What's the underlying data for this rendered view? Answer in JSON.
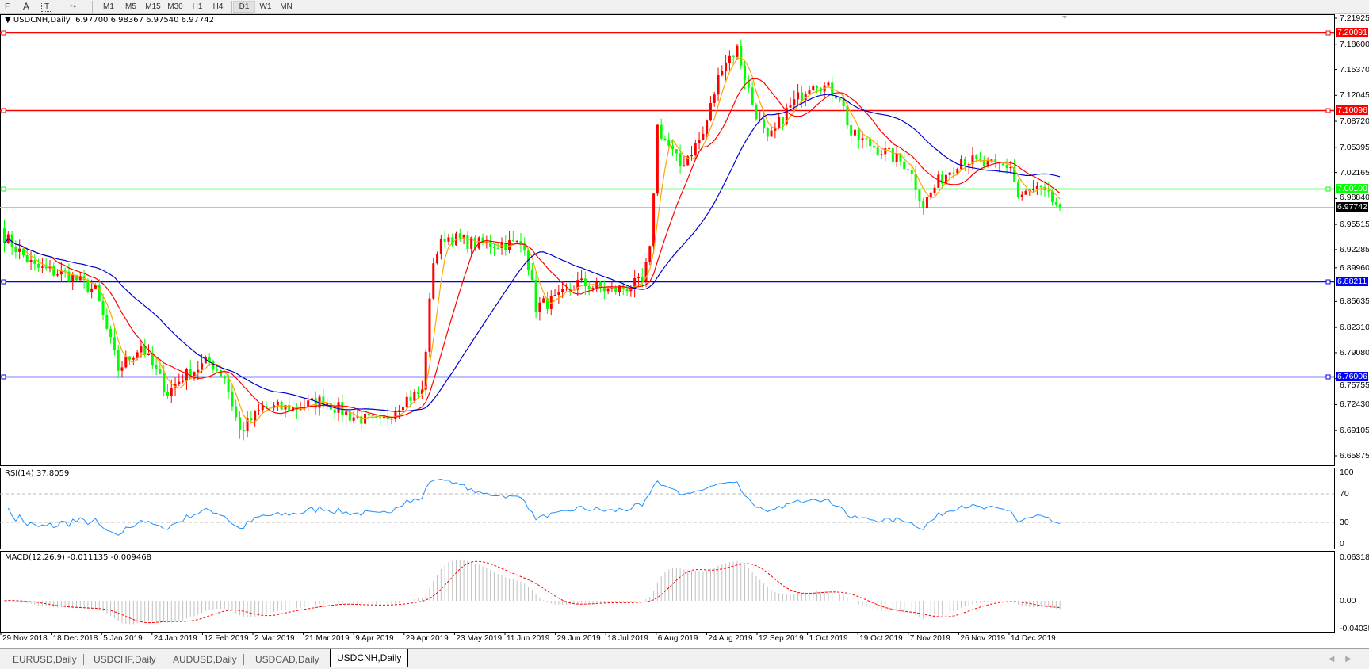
{
  "toolbar": {
    "tools": [
      "F",
      "A",
      "T",
      "⤳"
    ],
    "timeframes": [
      "M1",
      "M5",
      "M15",
      "M30",
      "H1",
      "H4",
      "D1",
      "W1",
      "MN"
    ],
    "active_timeframe": "D1"
  },
  "chart": {
    "symbol_line": "USDCNH,Daily  6.97700 6.98367 6.97540 6.97742",
    "current_price": "6.97742",
    "price_ticks": [
      "7.21925",
      "7.18600",
      "7.15370",
      "7.12045",
      "7.08720",
      "7.05395",
      "7.02165",
      "6.98840",
      "6.95515",
      "6.92285",
      "6.89960",
      "6.85635",
      "6.82310",
      "6.79080",
      "6.75755",
      "6.72430",
      "6.69105",
      "6.65875"
    ],
    "levels": [
      {
        "label": "7.20091",
        "price": 7.20091,
        "color": "#ff0000"
      },
      {
        "label": "7.10096",
        "price": 7.10096,
        "color": "#ff0000"
      },
      {
        "label": "7.00100",
        "price": 7.001,
        "color": "#00ff00"
      },
      {
        "label": "6.88211",
        "price": 6.88211,
        "color": "#0000ff"
      },
      {
        "label": "6.76006",
        "price": 6.76006,
        "color": "#0000ff"
      }
    ],
    "colors": {
      "up": "#ff0000",
      "down": "#00ff00",
      "ma_fast": "#ffa500",
      "ma_mid": "#ff0000",
      "ma_slow": "#0000cd",
      "rsi": "#1e90ff",
      "macd_hist": "#c0c0c0",
      "macd_signal": "#ff0000"
    }
  },
  "rsi": {
    "title": "RSI(14) 37.8059",
    "ticks": [
      "100",
      "70",
      "30",
      "0"
    ]
  },
  "macd": {
    "title": "MACD(12,26,9) -0.011135 -0.009468",
    "ticks": [
      "0.063184",
      "0.00",
      "-0.040355"
    ]
  },
  "dates": [
    "29 Nov 2018",
    "18 Dec 2018",
    "5 Jan 2019",
    "24 Jan 2019",
    "12 Feb 2019",
    "2 Mar 2019",
    "21 Mar 2019",
    "9 Apr 2019",
    "29 Apr 2019",
    "23 May 2019",
    "11 Jun 2019",
    "29 Jun 2019",
    "18 Jul 2019",
    "6 Aug 2019",
    "24 Aug 2019",
    "12 Sep 2019",
    "1 Oct 2019",
    "19 Oct 2019",
    "7 Nov 2019",
    "26 Nov 2019",
    "14 Dec 2019"
  ],
  "tabs": [
    {
      "label": "EURUSD,Daily",
      "active": false
    },
    {
      "label": "USDCHF,Daily",
      "active": false
    },
    {
      "label": "AUDUSD,Daily",
      "active": false
    },
    {
      "label": "USDCAD,Daily",
      "active": false
    },
    {
      "label": "USDCNH,Daily",
      "active": true
    }
  ],
  "chart_data": {
    "type": "candlestick",
    "ylim": [
      6.65875,
      7.21925
    ],
    "close_path": [
      [
        0,
        6.94
      ],
      [
        8,
        6.9
      ],
      [
        17,
        6.89
      ],
      [
        24,
        6.87
      ],
      [
        30,
        6.77
      ],
      [
        36,
        6.8
      ],
      [
        43,
        6.74
      ],
      [
        47,
        6.76
      ],
      [
        54,
        6.78
      ],
      [
        58,
        6.76
      ],
      [
        62,
        6.69
      ],
      [
        68,
        6.72
      ],
      [
        77,
        6.72
      ],
      [
        84,
        6.73
      ],
      [
        91,
        6.71
      ],
      [
        99,
        6.7
      ],
      [
        105,
        6.73
      ],
      [
        110,
        6.74
      ],
      [
        113,
        6.91
      ],
      [
        116,
        6.94
      ],
      [
        124,
        6.93
      ],
      [
        132,
        6.93
      ],
      [
        137,
        6.93
      ],
      [
        140,
        6.85
      ],
      [
        146,
        6.86
      ],
      [
        151,
        6.88
      ],
      [
        160,
        6.87
      ],
      [
        168,
        6.88
      ],
      [
        170,
        6.92
      ],
      [
        172,
        7.08
      ],
      [
        178,
        7.03
      ],
      [
        184,
        7.07
      ],
      [
        189,
        7.16
      ],
      [
        193,
        7.18
      ],
      [
        197,
        7.11
      ],
      [
        201,
        7.06
      ],
      [
        206,
        7.1
      ],
      [
        213,
        7.14
      ],
      [
        220,
        7.12
      ],
      [
        223,
        7.07
      ],
      [
        231,
        7.05
      ],
      [
        238,
        7.03
      ],
      [
        242,
        6.98
      ],
      [
        246,
        7.01
      ],
      [
        252,
        7.04
      ],
      [
        259,
        7.03
      ],
      [
        265,
        7.03
      ],
      [
        267,
        6.99
      ],
      [
        272,
        7.0
      ],
      [
        278,
        6.97742
      ]
    ]
  }
}
